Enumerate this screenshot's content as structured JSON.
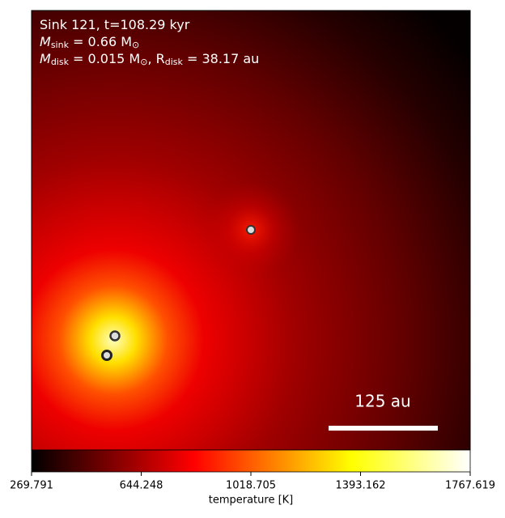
{
  "chart_data": {
    "type": "image",
    "annotation_lines": [
      [
        "Sink 121, t=108.29 kyr"
      ],
      [
        "M",
        "sink",
        " = 0.66 M",
        "⊙"
      ],
      [
        "M",
        "disk",
        " = 0.015 M",
        "⊙",
        ", R",
        "disk",
        " = 38.17 au"
      ]
    ],
    "scale_bar_label": "125 au",
    "colormap": "hot",
    "colorbar": {
      "label": "temperature [K]",
      "clim": [
        269.791,
        1767.619
      ],
      "ticks": [
        269.791,
        644.248,
        1018.705,
        1393.162,
        1767.619
      ]
    }
  }
}
